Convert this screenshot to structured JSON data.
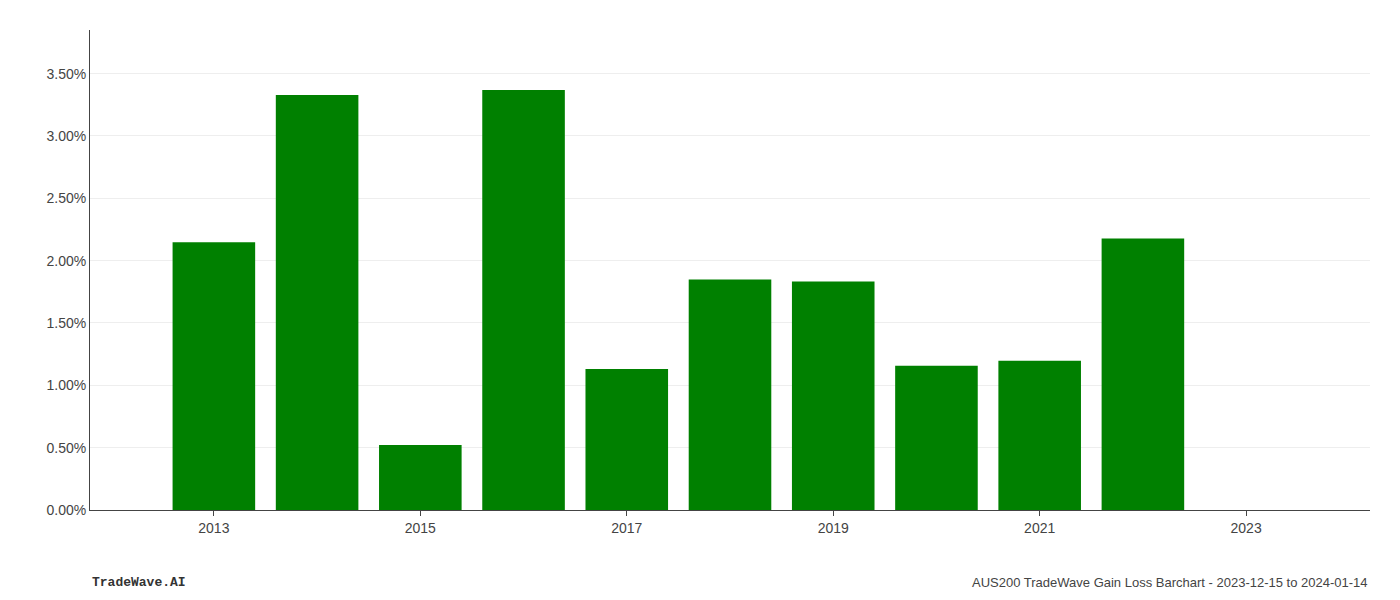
{
  "chart_data": {
    "type": "bar",
    "x": [
      2013,
      2014,
      2015,
      2016,
      2017,
      2018,
      2019,
      2020,
      2021,
      2022,
      2023
    ],
    "values": [
      0.02148,
      0.03328,
      0.00522,
      0.03368,
      0.0113,
      0.01848,
      0.01832,
      0.01158,
      0.01198,
      0.02178,
      0.0
    ],
    "color": "#008000",
    "xlim": [
      2011.8,
      2024.2
    ],
    "xticks": [
      2013,
      2015,
      2017,
      2019,
      2021,
      2023
    ],
    "ylim": [
      0,
      0.0385
    ],
    "yticks": [
      {
        "value": 0.0,
        "label": "0.00%"
      },
      {
        "value": 0.005,
        "label": "0.50%"
      },
      {
        "value": 0.01,
        "label": "1.00%"
      },
      {
        "value": 0.015,
        "label": "1.50%"
      },
      {
        "value": 0.02,
        "label": "2.00%"
      },
      {
        "value": 0.025,
        "label": "2.50%"
      },
      {
        "value": 0.03,
        "label": "3.00%"
      },
      {
        "value": 0.035,
        "label": "3.50%"
      }
    ],
    "grid": true,
    "annotations": [
      "TradeWave.AI",
      "AUS200 TradeWave Gain Loss Barchart - 2023-12-15 to 2024-01-14"
    ]
  }
}
